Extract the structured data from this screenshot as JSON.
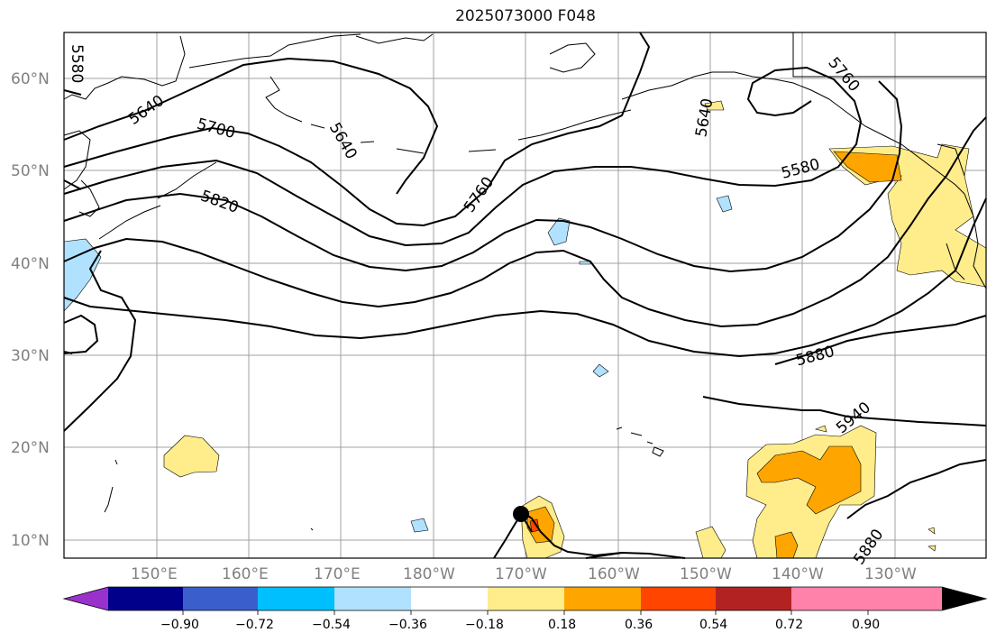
{
  "title": "2025073000 F048",
  "latitude_labels": [
    "60°N",
    "50°N",
    "40°N",
    "30°N",
    "20°N",
    "10°N"
  ],
  "longitude_labels": [
    "150°E",
    "160°E",
    "170°E",
    "180°W",
    "170°W",
    "160°W",
    "150°W",
    "140°W",
    "130°W"
  ],
  "contour_labels": [
    "5580",
    "5640",
    "5700",
    "5640",
    "5820",
    "5760",
    "5640",
    "5760",
    "5580",
    "5880",
    "5940",
    "5880"
  ],
  "colorbar": {
    "tick_labels": [
      "−0.90",
      "−0.72",
      "−0.54",
      "−0.36",
      "−0.18",
      "0.18",
      "0.36",
      "0.54",
      "0.72",
      "0.90"
    ],
    "colors": [
      "#9932cc",
      "#00008b",
      "#3a5fcd",
      "#00bfff",
      "#b0e2ff",
      "#ffffff",
      "#ffec8b",
      "#ffa500",
      "#ff4500",
      "#b22222",
      "#ff82ab",
      "#ff82ab"
    ]
  },
  "marker": "storm-center"
}
